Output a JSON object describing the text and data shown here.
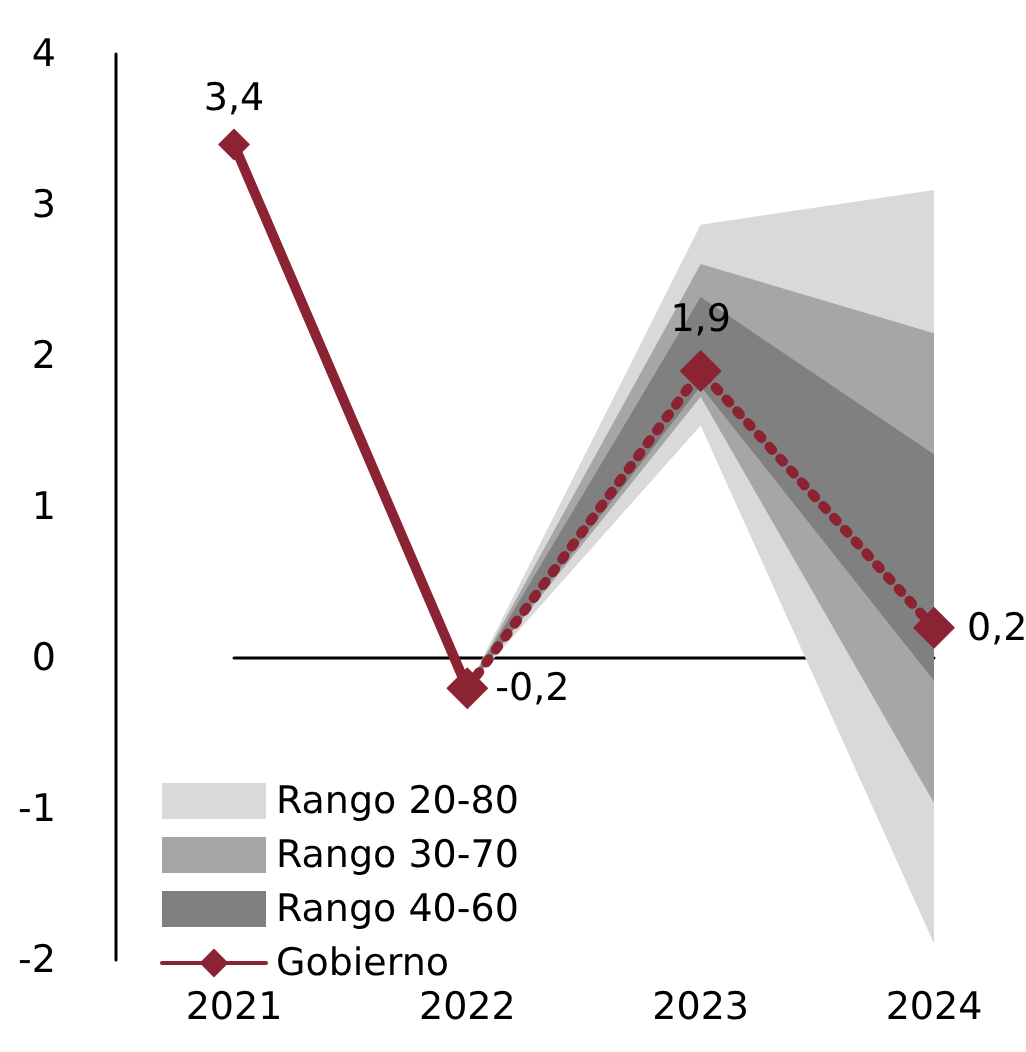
{
  "chart_data": {
    "type": "line",
    "categories": [
      "2021",
      "2022",
      "2023",
      "2024"
    ],
    "series": [
      {
        "name": "Rango 20-80",
        "type": "area",
        "color": "#d9d9d9",
        "values": [
          null,
          null,
          null,
          null
        ],
        "lower": [
          null,
          -0.2,
          1.54,
          -1.89
        ],
        "upper": [
          null,
          -0.2,
          2.87,
          3.1
        ]
      },
      {
        "name": "Rango 30-70",
        "type": "area",
        "color": "#a6a6a6",
        "values": [
          null,
          null,
          null,
          null
        ],
        "lower": [
          null,
          -0.2,
          1.73,
          -0.96
        ],
        "upper": [
          null,
          -0.2,
          2.61,
          2.15
        ]
      },
      {
        "name": "Rango 40-60",
        "type": "area",
        "color": "#808080",
        "values": [
          null,
          null,
          null,
          null
        ],
        "lower": [
          null,
          -0.2,
          1.8,
          -0.15
        ],
        "upper": [
          null,
          -0.2,
          2.39,
          1.35
        ]
      },
      {
        "name": "Gobierno",
        "color": "#8b2332",
        "line_style": "solid",
        "marker": "diamond",
        "values": [
          3.4,
          -0.2,
          null,
          null
        ],
        "value_labels": [
          "3,4",
          "-0,2",
          null,
          null
        ]
      },
      {
        "color": "#8b2332",
        "line_style": "dotted",
        "marker": "diamond",
        "values": [
          null,
          -0.2,
          1.9,
          0.2
        ],
        "value_labels": [
          null,
          null,
          "1,9",
          "0,2"
        ]
      }
    ],
    "ylim": [
      -2,
      4
    ],
    "yticks": [
      -2,
      -1,
      0,
      1,
      2,
      3,
      4
    ],
    "legend": "bottom left"
  }
}
